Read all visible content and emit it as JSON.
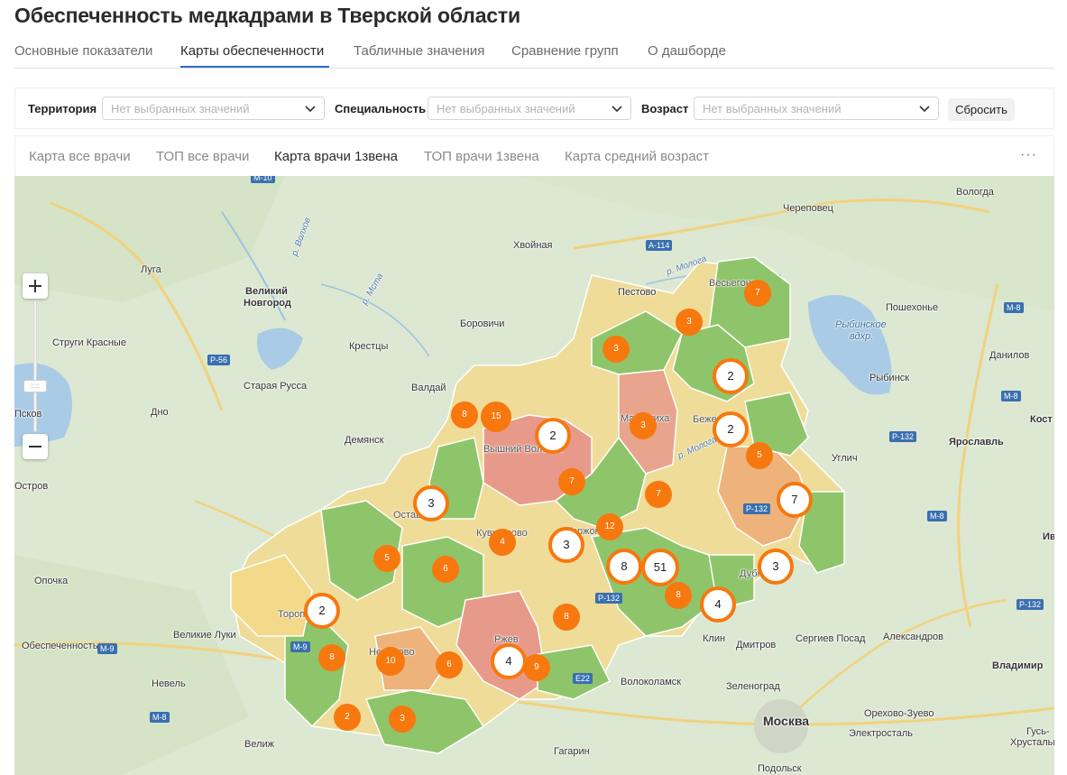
{
  "page_title": "Обеспеченность медкадрами в Тверской области",
  "tabs": [
    {
      "label": "Основные показатели",
      "active": false
    },
    {
      "label": "Карты обеспеченности",
      "active": true
    },
    {
      "label": "Табличные значения",
      "active": false
    },
    {
      "label": "Сравнение групп",
      "active": false
    },
    {
      "label": "О дашборде",
      "active": false
    }
  ],
  "filters": {
    "territory_label": "Территория",
    "specialty_label": "Специальность",
    "age_label": "Возраст",
    "placeholder": "Нет выбранных значений",
    "reset_label": "Сбросить"
  },
  "subtabs": [
    {
      "label": "Карта все врачи",
      "active": false
    },
    {
      "label": "ТОП все врачи",
      "active": false
    },
    {
      "label": "Карта врачи 1звена",
      "active": true
    },
    {
      "label": "ТОП врачи 1звена",
      "active": false
    },
    {
      "label": "Карта средний возраст",
      "active": false
    }
  ],
  "more_label": "···",
  "map": {
    "zoom_thumb": "::::",
    "places": [
      "Вологда",
      "Череповец",
      "Хвойная",
      "Пестово",
      "Луга",
      "Великий",
      "Новгород",
      "Пошехонье",
      "Боровичи",
      "Струги Красные",
      "Крестцы",
      "Рыбинское",
      "вдхр.",
      "Данилов",
      "Старая Русса",
      "Валдай",
      "Рыбинск",
      "Дно",
      "Демянск",
      "Кост",
      "Псков",
      "Ярославль",
      "Углич",
      "Остров",
      "Опочка",
      "Обеспеченность",
      "Великие Луки",
      "Невель",
      "Клин",
      "Дмитров",
      "Сергиев Посад",
      "Александров",
      "Владимир",
      "Волоколамск",
      "Зеленоград",
      "Москва",
      "Орехово-Зуево",
      "Электросталь",
      "Гусь-",
      "Хрустальн",
      "Подольск",
      "Велиж",
      "Гагарин",
      "Ив"
    ],
    "rivers": [
      "р. Волхов",
      "р. Мста",
      "р. Молога",
      "р. Молога"
    ],
    "roads": [
      "М-10",
      "А-114",
      "М-8",
      "Р-56",
      "М-8",
      "Р-132",
      "М-8",
      "М-9",
      "М-9",
      "Р-132",
      "Е22",
      "Р-132",
      "М-8",
      "Р-132"
    ],
    "region_labels": [
      "Весьегонск",
      "Максатиха",
      "Бежецк",
      "Вышний Волочек",
      "Осташков",
      "Кувшиново",
      "Торжок",
      "Дубна",
      "Торопец",
      "Нелидово",
      "Ржев"
    ],
    "clusters": [
      {
        "n": "7"
      },
      {
        "n": "3"
      },
      {
        "n": "3"
      },
      {
        "n": "2"
      },
      {
        "n": "8"
      },
      {
        "n": "15"
      },
      {
        "n": "3"
      },
      {
        "n": "2"
      },
      {
        "n": "2"
      },
      {
        "n": "5"
      },
      {
        "n": "7"
      },
      {
        "n": "7"
      },
      {
        "n": "3"
      },
      {
        "n": "7"
      },
      {
        "n": "12"
      },
      {
        "n": "4"
      },
      {
        "n": "3"
      },
      {
        "n": "5"
      },
      {
        "n": "6"
      },
      {
        "n": "8"
      },
      {
        "n": "51"
      },
      {
        "n": "3"
      },
      {
        "n": "8"
      },
      {
        "n": "4"
      },
      {
        "n": "2"
      },
      {
        "n": "8"
      },
      {
        "n": "8"
      },
      {
        "n": "10"
      },
      {
        "n": "6"
      },
      {
        "n": "4"
      },
      {
        "n": "9"
      },
      {
        "n": "2"
      },
      {
        "n": "3"
      }
    ]
  },
  "colors": {
    "accent": "#2b6cd4",
    "cluster": "#f7780e",
    "region_green": "#8fc56a",
    "region_yellow": "#f0d27a",
    "region_orange": "#eeb27b",
    "region_red": "#e89a8a"
  }
}
